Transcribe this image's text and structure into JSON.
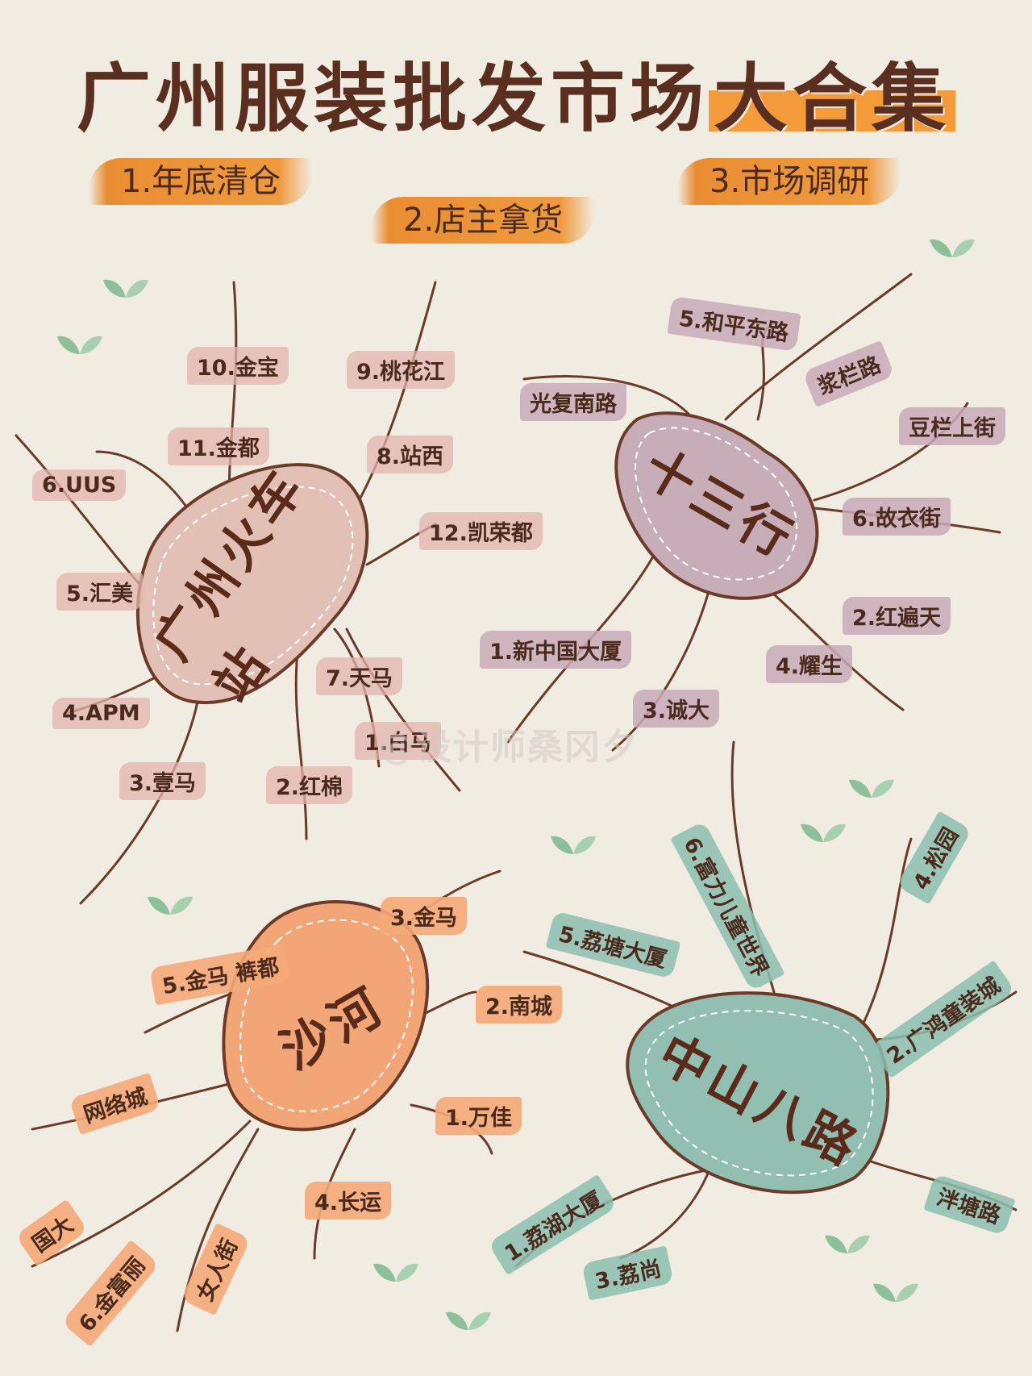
{
  "title": {
    "main": "广州服装批发市场",
    "highlight": "大合集"
  },
  "purposes": [
    "1.年底清仓",
    "2.店主拿货",
    "3.市场调研"
  ],
  "hubs": [
    {
      "name": "广州火车站",
      "color": "#e2c0b6",
      "branches": [
        "10.金宝",
        "9.桃花江",
        "11.金都",
        "8.站西",
        "6.UUS",
        "12.凯荣都",
        "5.汇美",
        "7.天马",
        "4.APM",
        "1.白马",
        "3.壹马",
        "2.红棉"
      ]
    },
    {
      "name": "十三行",
      "color": "#c6adb8",
      "branches": [
        "5.和平东路",
        "浆栏路",
        "光复南路",
        "豆栏上街",
        "6.故衣街",
        "1.新中国大厦",
        "2.红遍天",
        "4.耀生",
        "3.诚大"
      ]
    },
    {
      "name": "沙河",
      "color": "#f2a577",
      "branches": [
        "3.金马",
        "5.金马 裤都",
        "2.南城",
        "网络城",
        "1.万佳",
        "4.长运",
        "国大",
        "6.金富丽",
        "女人街"
      ]
    },
    {
      "name": "中山八路",
      "color": "#92bfb1",
      "branches": [
        "6.富力儿童世界",
        "4.松园",
        "5.荔塘大厦",
        "2.广鸿童装城",
        "泮塘路",
        "1.荔湖大厦",
        "3.荔尚"
      ]
    }
  ],
  "watermark": "@设计师桑冈夕",
  "colors": {
    "ink": "#5a2f1f",
    "accent": "#f39a3a",
    "paper": "#f1ece2",
    "leaf": "#8dbf9a"
  }
}
